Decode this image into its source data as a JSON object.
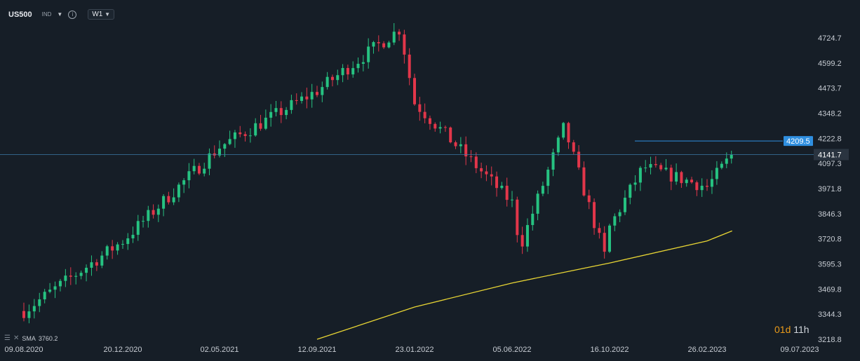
{
  "toolbar": {
    "symbol": "US500",
    "instrument_type": "IND",
    "timeframe": "W1"
  },
  "indicator": {
    "name": "SMA",
    "value": "3760.2"
  },
  "timer": {
    "days": "01d",
    "hours": "11h"
  },
  "colors": {
    "background": "#161e27",
    "bull": "#26c281",
    "bear": "#e2364a",
    "sma": "#e8d534",
    "resistance": "#2f8fe0",
    "current_price_line": "#3d7aa8"
  },
  "chart_data": {
    "type": "candlestick",
    "ylim": [
      3218.8,
      4792
    ],
    "y_ticks": [
      "4724.7",
      "4599.2",
      "4473.7",
      "4348.2",
      "4222.8",
      "4097.3",
      "3971.8",
      "3846.3",
      "3720.8",
      "3595.3",
      "3469.8",
      "3344.3",
      "3218.8"
    ],
    "x_ticks": [
      "09.08.2020",
      "20.12.2020",
      "02.05.2021",
      "12.09.2021",
      "23.01.2022",
      "05.06.2022",
      "16.10.2022",
      "26.02.2023",
      "09.07.2023"
    ],
    "grid": false,
    "current_price": "4141.7",
    "resistance_level": "4209.5",
    "resistance_value": 4209.5,
    "current_value": 4141.7,
    "key_closes": [
      {
        "date": "09.08.2020",
        "close": 3360
      },
      {
        "date": "20.12.2020",
        "close": 3710
      },
      {
        "date": "02.05.2021",
        "close": 4180
      },
      {
        "date": "12.09.2021",
        "close": 4460
      },
      {
        "date": "03.01.2022",
        "close": 4770
      },
      {
        "date": "23.01.2022",
        "close": 4400
      },
      {
        "date": "05.06.2022",
        "close": 3900
      },
      {
        "date": "16.06.2022",
        "close": 3680
      },
      {
        "date": "15.08.2022",
        "close": 4280
      },
      {
        "date": "13.10.2022",
        "close": 3590
      },
      {
        "date": "16.10.2022",
        "close": 3780
      },
      {
        "date": "01.12.2022",
        "close": 4080
      },
      {
        "date": "26.02.2023",
        "close": 3980
      },
      {
        "date": "03.04.2023",
        "close": 4141.7
      }
    ],
    "sma_series": [
      {
        "date": "12.09.2021",
        "value": 3218.8
      },
      {
        "date": "23.01.2022",
        "value": 3380
      },
      {
        "date": "05.06.2022",
        "value": 3500
      },
      {
        "date": "16.10.2022",
        "value": 3600
      },
      {
        "date": "26.02.2023",
        "value": 3710
      },
      {
        "date": "03.04.2023",
        "value": 3760.2
      }
    ]
  }
}
